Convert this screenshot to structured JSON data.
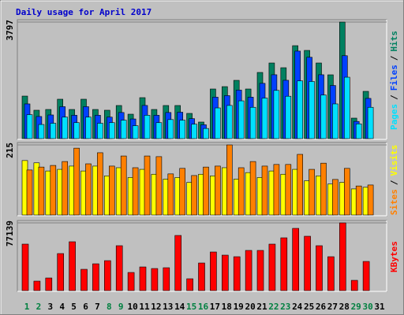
{
  "title": "Daily usage for April 2017",
  "chart_data": [
    {
      "type": "bar",
      "ylim": [
        0,
        3797
      ],
      "yticks": [
        3797
      ],
      "legend_separator": "/",
      "series": [
        {
          "name": "Hits",
          "color": "#008060",
          "values": [
            1385,
            924,
            949,
            1283,
            949,
            1283,
            949,
            924,
            1078,
            795,
            1334,
            949,
            1078,
            1078,
            821,
            539,
            1616,
            1693,
            1898,
            1616,
            2155,
            2463,
            2309,
            3027,
            2873,
            2463,
            2078,
            3797,
            667,
            1539,
            0
          ]
        },
        {
          "name": "Files",
          "color": "#0040ff",
          "values": [
            1130,
            720,
            770,
            1040,
            760,
            1040,
            760,
            700,
            850,
            640,
            1080,
            760,
            850,
            860,
            650,
            450,
            1350,
            1400,
            1580,
            1350,
            1800,
            2080,
            1900,
            2850,
            2650,
            2080,
            1730,
            2700,
            560,
            1310,
            0
          ]
        },
        {
          "name": "Pages",
          "color": "#00e0ff",
          "values": [
            780,
            460,
            500,
            700,
            520,
            700,
            500,
            520,
            600,
            420,
            760,
            520,
            620,
            600,
            470,
            330,
            1000,
            1080,
            1230,
            1020,
            1320,
            1570,
            1380,
            1880,
            1860,
            1420,
            1130,
            2000,
            480,
            1020,
            0
          ]
        }
      ]
    },
    {
      "type": "bar",
      "ylim": [
        0,
        215
      ],
      "yticks": [
        215
      ],
      "legend_separator": "/",
      "series": [
        {
          "name": "Visits",
          "color": "#ffff00",
          "values": [
            167,
            160,
            135,
            140,
            150,
            135,
            150,
            120,
            145,
            115,
            140,
            125,
            110,
            115,
            100,
            125,
            120,
            145,
            110,
            130,
            115,
            135,
            125,
            140,
            105,
            120,
            95,
            100,
            80,
            85,
            0
          ]
        },
        {
          "name": "Sites",
          "color": "#ff8000",
          "values": [
            138,
            147,
            152,
            164,
            205,
            157,
            191,
            150,
            181,
            145,
            181,
            179,
            126,
            143,
            121,
            147,
            150,
            215,
            145,
            164,
            150,
            155,
            155,
            186,
            140,
            159,
            109,
            143,
            89,
            92,
            0
          ]
        }
      ]
    },
    {
      "type": "bar",
      "ylim": [
        0,
        77139
      ],
      "yticks": [
        77139
      ],
      "categories": [
        "1",
        "2",
        "3",
        "4",
        "5",
        "6",
        "7",
        "8",
        "9",
        "10",
        "11",
        "12",
        "13",
        "14",
        "15",
        "16",
        "17",
        "18",
        "19",
        "20",
        "21",
        "22",
        "23",
        "24",
        "25",
        "26",
        "27",
        "28",
        "29",
        "30",
        "31"
      ],
      "category_colors": [
        "#008040",
        "#008040",
        "#000000",
        "#000000",
        "#000000",
        "#000000",
        "#000000",
        "#008040",
        "#008040",
        "#000000",
        "#000000",
        "#000000",
        "#000000",
        "#000000",
        "#008040",
        "#008040",
        "#000000",
        "#000000",
        "#000000",
        "#000000",
        "#000000",
        "#008040",
        "#008040",
        "#000000",
        "#000000",
        "#000000",
        "#000000",
        "#000000",
        "#008040",
        "#008040",
        "#000000"
      ],
      "series": [
        {
          "name": "KBytes",
          "color": "#ff0000",
          "values": [
            52921,
            10764,
            14352,
            42158,
            55612,
            24218,
            30497,
            34085,
            51127,
            20630,
            26909,
            25115,
            26012,
            62788,
            13455,
            31394,
            43952,
            40364,
            38570,
            45745,
            45745,
            52921,
            60097,
            70861,
            61891,
            51127,
            38570,
            77139,
            11661,
            33188,
            0
          ]
        }
      ]
    }
  ]
}
